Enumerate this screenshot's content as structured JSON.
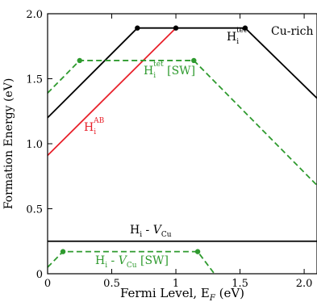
{
  "chart_data": {
    "type": "line",
    "title": "",
    "xlabel": "Fermi Level, E",
    "xlabel_sub": "F",
    "xlabel_unit": " (eV)",
    "ylabel": "Formation Energy (eV)",
    "xlim": [
      0,
      2.1
    ],
    "ylim": [
      0,
      2.0
    ],
    "xticks": [
      0,
      0.5,
      1,
      1.5,
      2
    ],
    "xtick_labels": [
      "0",
      "0.5",
      "1",
      "1.5",
      "2.0"
    ],
    "yticks": [
      0,
      0.5,
      1.0,
      1.5,
      2.0
    ],
    "ytick_labels": [
      "0",
      "0.5",
      "1.0",
      "1.5",
      "2.0"
    ],
    "grid": false,
    "legend": "none",
    "annotation": "Cu-rich",
    "series": [
      {
        "name": "H_i^tet",
        "label_main": "H",
        "label_sub": "i",
        "label_sup": "tet",
        "label_suffix": "",
        "color": "#000000",
        "dash": "solid",
        "x": [
          0,
          0.7,
          1.54,
          2.1
        ],
        "y": [
          1.2,
          1.89,
          1.89,
          1.35
        ],
        "markers": [
          [
            0.7,
            1.89
          ],
          [
            1.0,
            1.89
          ],
          [
            1.54,
            1.89
          ]
        ]
      },
      {
        "name": "H_i^AB",
        "label_main": "H",
        "label_sub": "i",
        "label_sup": "AB",
        "label_suffix": "",
        "color": "#e8202a",
        "dash": "solid",
        "x": [
          0,
          1.0
        ],
        "y": [
          0.91,
          1.89
        ],
        "markers": []
      },
      {
        "name": "H_i^tet [SW]",
        "label_main": "H",
        "label_sub": "i",
        "label_sup": "tet",
        "label_suffix": " [SW]",
        "color": "#2e9a2e",
        "dash": "dashed",
        "x": [
          0,
          0.25,
          1.14,
          2.1
        ],
        "y": [
          1.39,
          1.64,
          1.64,
          0.68
        ],
        "markers": [
          [
            0.25,
            1.64
          ],
          [
            1.14,
            1.64
          ]
        ]
      },
      {
        "name": "H_i - V_Cu",
        "label_main": "H",
        "label_sub": "i",
        "label_sup": "",
        "label_suffix": " - V",
        "label_suffix_sub": "Cu",
        "color": "#000000",
        "dash": "solid",
        "x": [
          0,
          2.1
        ],
        "y": [
          0.25,
          0.25
        ],
        "markers": []
      },
      {
        "name": "H_i - V_Cu [SW]",
        "label_main": "H",
        "label_sub": "i",
        "label_sup": "",
        "label_suffix": " - V",
        "label_suffix_sub": "Cu",
        "label_suffix2": " [SW]",
        "color": "#2e9a2e",
        "dash": "dashed",
        "x": [
          0,
          0.12,
          1.17,
          1.3
        ],
        "y": [
          0.05,
          0.17,
          0.17,
          0.0
        ],
        "markers": [
          [
            0.12,
            0.17
          ],
          [
            1.17,
            0.17
          ]
        ]
      }
    ]
  }
}
